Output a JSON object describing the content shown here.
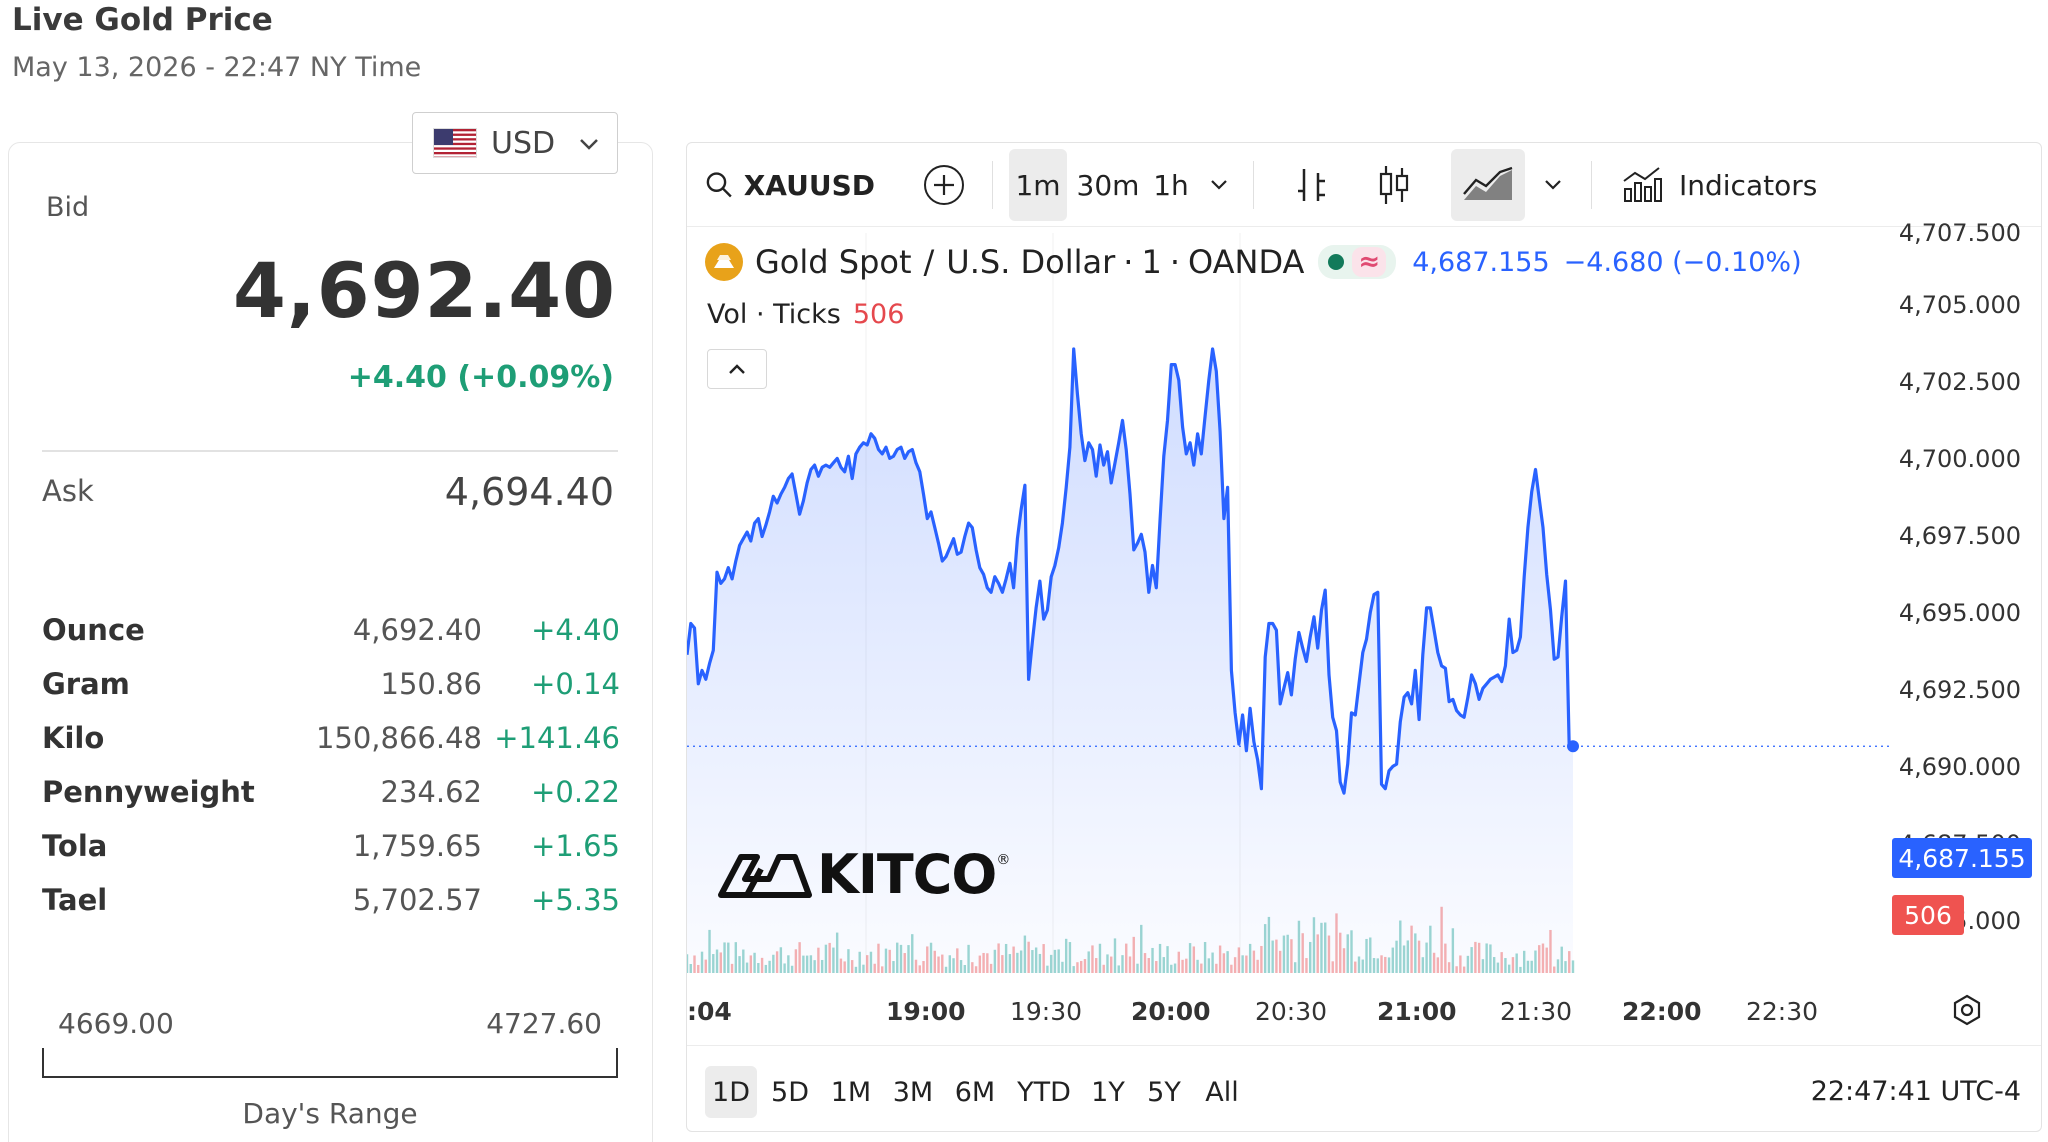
{
  "page": {
    "title": "Live Gold Price",
    "subtitle": "May 13, 2026 - 22:47 NY Time"
  },
  "currency": {
    "selected": "USD"
  },
  "quote": {
    "bid_label": "Bid",
    "bid": "4,692.40",
    "bid_change": "+4.40 (+0.09%)",
    "ask_label": "Ask",
    "ask": "4,694.40"
  },
  "weights": [
    {
      "name": "Ounce",
      "value": "4,692.40",
      "change": "+4.40"
    },
    {
      "name": "Gram",
      "value": "150.86",
      "change": "+0.14"
    },
    {
      "name": "Kilo",
      "value": "150,866.48",
      "change": "+141.46"
    },
    {
      "name": "Pennyweight",
      "value": "234.62",
      "change": "+0.22"
    },
    {
      "name": "Tola",
      "value": "1,759.65",
      "change": "+1.65"
    },
    {
      "name": "Tael",
      "value": "5,702.57",
      "change": "+5.35"
    }
  ],
  "day_range": {
    "low": "4669.00",
    "high": "4727.60",
    "label": "Day's Range"
  },
  "toolbar": {
    "symbol": "XAUUSD",
    "intervals": [
      "1m",
      "30m",
      "1h"
    ],
    "active_interval": "1m",
    "indicators_label": "Indicators"
  },
  "legend": {
    "name": "Gold Spot",
    "separator": "/",
    "quote_currency": "U.S. Dollar",
    "interval": "1",
    "source": "OANDA",
    "last": "4,687.155",
    "change": "−4.680 (−0.10%)",
    "volume_label": "Vol · Ticks",
    "volume_value": "506"
  },
  "price_tag": "4,687.155",
  "volume_tag": "506",
  "ranges": [
    "1D",
    "5D",
    "1M",
    "3M",
    "6M",
    "YTD",
    "1Y",
    "5Y",
    "All"
  ],
  "active_range": "1D",
  "clock": "22:47:41 UTC-4",
  "logo_text": "KITCO",
  "colors": {
    "line": "#2962ff",
    "up": "#1e9e76",
    "down": "#e5484d",
    "gold": "#e8a21a"
  },
  "chart_data": {
    "type": "area",
    "x_tick_labels": [
      ":04",
      "19:00",
      "19:30",
      "20:00",
      "20:30",
      "21:00",
      "21:30",
      "22:00",
      "22:30"
    ],
    "y_tick_labels": [
      "4,707.500",
      "4,705.000",
      "4,702.500",
      "4,700.000",
      "4,697.500",
      "4,695.000",
      "4,692.500",
      "4,690.000",
      "4,687.500",
      "4,685.000"
    ],
    "ylim": [
      4684.3,
      4707.6
    ],
    "series": [
      {
        "values": [
          4691.3,
          4692.7,
          4692.5,
          4690.0,
          4690.6,
          4690.2,
          4690.9,
          4691.5,
          4695.0,
          4694.5,
          4694.7,
          4695.2,
          4694.7,
          4695.5,
          4696.2,
          4696.5,
          4696.8,
          4696.4,
          4697.2,
          4697.4,
          4696.6,
          4697.1,
          4697.7,
          4698.4,
          4698.1,
          4698.5,
          4698.8,
          4699.2,
          4699.4,
          4698.5,
          4697.6,
          4698.2,
          4699.0,
          4699.6,
          4699.8,
          4699.3,
          4699.7,
          4699.8,
          4699.7,
          4699.9,
          4700.1,
          4699.7,
          4699.5,
          4700.2,
          4699.2,
          4700.3,
          4700.6,
          4700.8,
          4700.7,
          4701.2,
          4701.0,
          4700.5,
          4700.3,
          4700.6,
          4700.1,
          4700.2,
          4700.5,
          4700.6,
          4700.1,
          4700.4,
          4700.5,
          4699.9,
          4699.5,
          4698.5,
          4697.4,
          4697.7,
          4697.0,
          4696.3,
          4695.5,
          4695.7,
          4696.1,
          4696.5,
          4695.8,
          4695.9,
          4696.6,
          4697.2,
          4697.0,
          4696.0,
          4695.2,
          4694.9,
          4694.3,
          4694.1,
          4694.8,
          4694.5,
          4694.1,
          4694.7,
          4695.4,
          4694.3,
          4696.5,
          4697.8,
          4698.9,
          4690.2,
          4691.9,
          4693.4,
          4694.6,
          4692.9,
          4693.3,
          4694.8,
          4695.3,
          4696.1,
          4697.2,
          4698.8,
          4700.6,
          4705.0,
          4703.0,
          4701.2,
          4700.0,
          4700.8,
          4700.5,
          4699.3,
          4700.7,
          4699.8,
          4700.4,
          4699.0,
          4699.9,
          4700.8,
          4701.8,
          4700.5,
          4698.5,
          4696.0,
          4696.3,
          4696.7,
          4695.9,
          4694.1,
          4695.3,
          4694.3,
          4697.3,
          4700.2,
          4701.8,
          4704.3,
          4704.3,
          4703.6,
          4701.5,
          4700.3,
          4700.8,
          4699.8,
          4701.2,
          4700.3,
          4702.0,
          4703.6,
          4705.0,
          4704.0,
          4701.3,
          4697.4,
          4698.8,
          4690.6,
          4688.7,
          4687.3,
          4688.6,
          4687.0,
          4688.9,
          4687.4,
          4686.6,
          4685.3,
          4691.2,
          4692.7,
          4692.7,
          4692.4,
          4689.1,
          4689.8,
          4690.5,
          4689.5,
          4691.1,
          4692.3,
          4691.6,
          4691.0,
          4692.1,
          4693.0,
          4691.6,
          4693.3,
          4694.2,
          4690.4,
          4688.5,
          4687.9,
          4685.6,
          4685.1,
          4686.4,
          4688.7,
          4688.6,
          4690.0,
          4691.4,
          4692.0,
          4693.2,
          4694.0,
          4694.1,
          4685.5,
          4685.3,
          4686.1,
          4686.3,
          4686.4,
          4688.3,
          4689.4,
          4689.6,
          4689.1,
          4690.6,
          4688.4,
          4691.3,
          4693.4,
          4693.4,
          4692.4,
          4691.4,
          4690.8,
          4690.7,
          4689.2,
          4689.3,
          4688.8,
          4688.6,
          4688.5,
          4689.4,
          4690.4,
          4690.0,
          4689.3,
          4689.8,
          4690.0,
          4690.2,
          4690.3,
          4690.4,
          4690.1,
          4690.8,
          4692.9,
          4691.4,
          4691.5,
          4692.1,
          4694.8,
          4697.0,
          4698.6,
          4699.6,
          4698.3,
          4697.0,
          4694.9,
          4693.3,
          4691.1,
          4691.2,
          4693.0,
          4694.6,
          4687.2,
          4687.2
        ]
      }
    ],
    "volume_last": 506
  }
}
